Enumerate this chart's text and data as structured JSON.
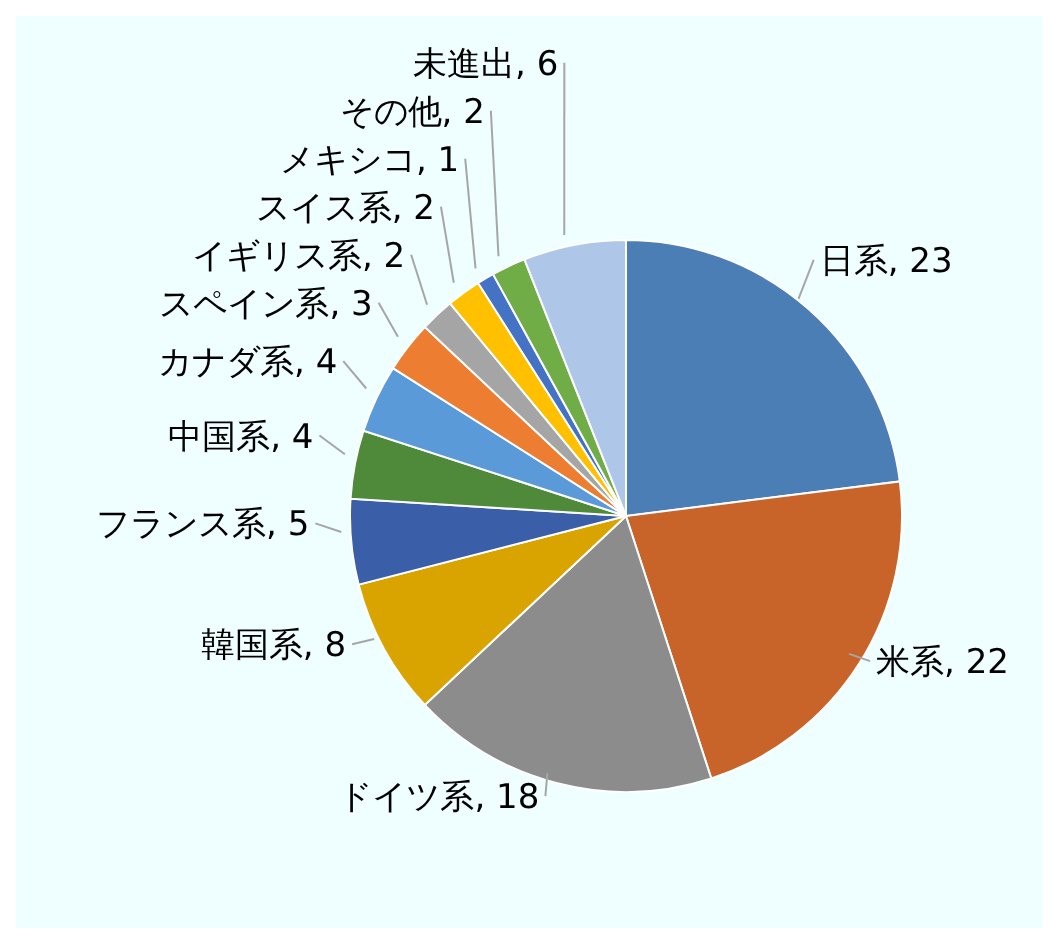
{
  "chart_data": {
    "type": "pie",
    "categories": [
      "日系",
      "米系",
      "ドイツ系",
      "韓国系",
      "フランス系",
      "中国系",
      "カナダ系",
      "スペイン系",
      "イギリス系",
      "スイス系",
      "メキシコ",
      "その他",
      "未進出"
    ],
    "values": [
      23,
      22,
      18,
      8,
      5,
      4,
      4,
      3,
      2,
      2,
      1,
      2,
      6
    ],
    "colors": [
      "#4a7eb4",
      "#c8642a",
      "#8c8c8c",
      "#d9a300",
      "#3a5fa8",
      "#4e8a3a",
      "#5a9ad8",
      "#ed7d31",
      "#a5a5a5",
      "#ffc000",
      "#4472c4",
      "#70ad47",
      "#aec6e8"
    ],
    "value_labels": [
      ", 23",
      ", 22",
      ", 18",
      ", 8",
      ", 5",
      ", 4",
      ", 4",
      ", 3",
      ", 2",
      ", 2",
      ", 1",
      ", 2",
      ", 6"
    ]
  }
}
